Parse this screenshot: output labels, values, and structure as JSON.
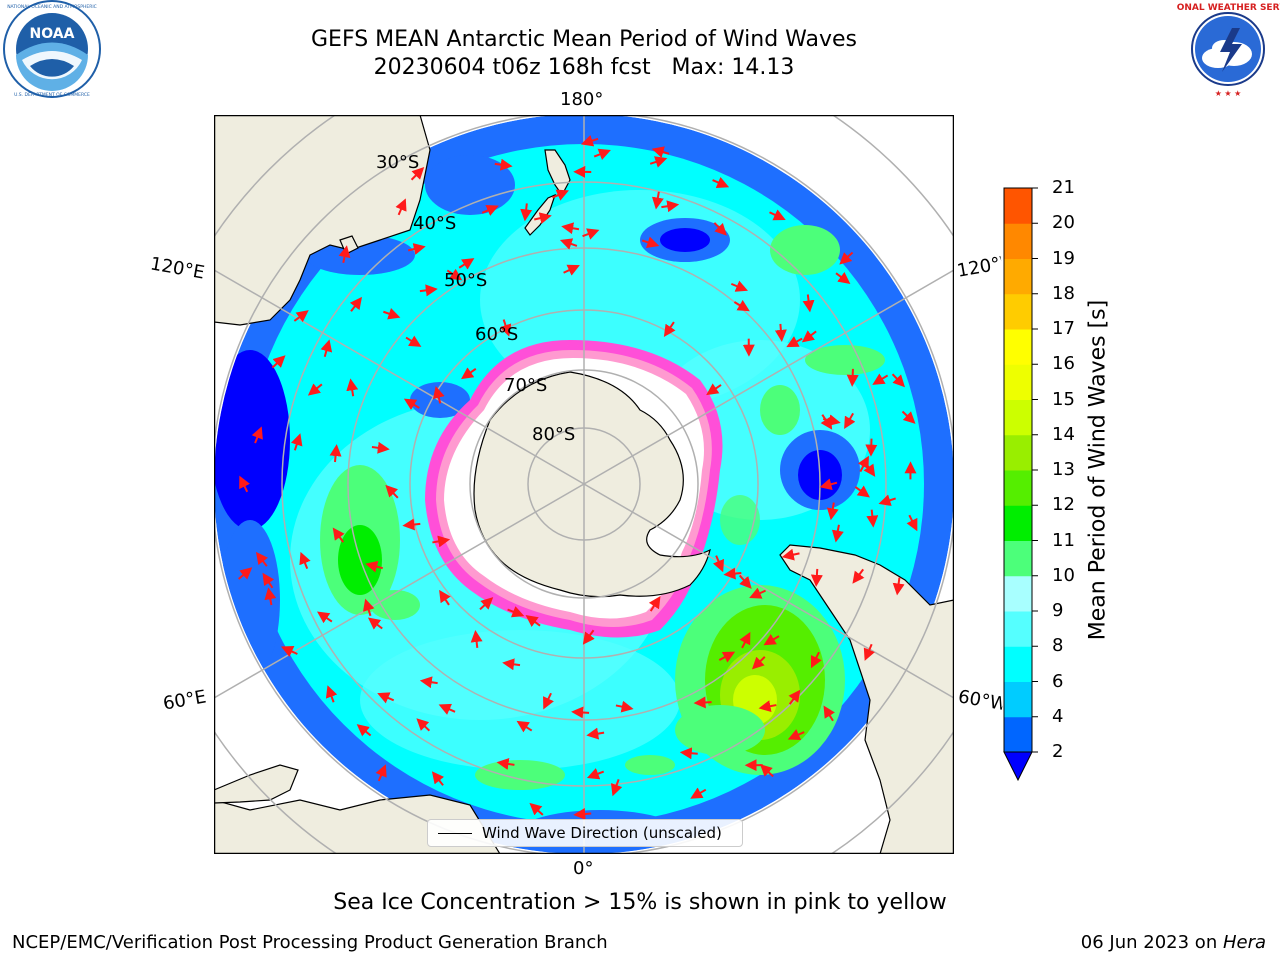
{
  "header": {
    "title_line1": "GEFS MEAN Antarctic Mean Period of Wind Waves",
    "title_line2": "20230604 t06z 168h fcst   Max: 14.13"
  },
  "logos": {
    "left": {
      "text": "NOAA",
      "ring_text": "NATIONAL OCEANIC AND ATMOSPHERIC ADMINISTRATION · U.S. DEPARTMENT OF COMMERCE",
      "color": "#1f5fa8"
    },
    "right": {
      "ring_text": "NATIONAL WEATHER SERVICE",
      "color": "#d62020"
    }
  },
  "map": {
    "longitude_labels": {
      "top": "180°",
      "bottom": "0°",
      "upper_left": "120°E",
      "lower_left": "60°E",
      "upper_right": "120°W",
      "lower_right": "60°W"
    },
    "latitude_labels": [
      "30°S",
      "40°S",
      "50°S",
      "60°S",
      "70°S",
      "80°S"
    ],
    "legend_label": "Wind Wave Direction (unscaled)",
    "arrow_color": "#ff1a1a",
    "land_color": "#efeddf",
    "ice_colors": [
      "#ff4fd8",
      "#ff9ad0",
      "#ffe060"
    ]
  },
  "colorbar": {
    "title": "Mean Period of Wind Waves [s]",
    "ticks": [
      "2",
      "4",
      "6",
      "8",
      "9",
      "10",
      "11",
      "12",
      "13",
      "14",
      "15",
      "16",
      "17",
      "18",
      "19",
      "20",
      "21"
    ],
    "colors": [
      "#0066ff",
      "#00ccff",
      "#00ffff",
      "#55ffff",
      "#a8ffff",
      "#4cff7a",
      "#00ee00",
      "#55ee00",
      "#99ee00",
      "#ccff00",
      "#eeff00",
      "#ffff00",
      "#ffcc00",
      "#ffaa00",
      "#ff8800",
      "#ff5500",
      "#ff2200",
      "#ff0000"
    ],
    "under_color": "#0000ff"
  },
  "footer": {
    "note": "Sea Ice Concentration > 15% is shown in pink to yellow",
    "left": "NCEP/EMC/Verification Post Processing Product Generation Branch",
    "date": "06 Jun 2023 on ",
    "machine": "Hera"
  }
}
